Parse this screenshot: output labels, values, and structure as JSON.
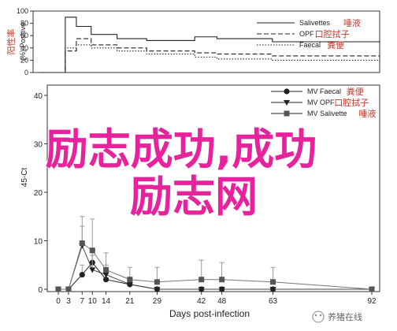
{
  "chart_data": [
    {
      "type": "step",
      "ylabel_cn": "阳性率",
      "ylabel": "(%) Positive",
      "ylim": [
        0,
        100
      ],
      "yticks": [
        0,
        20,
        40,
        60,
        80,
        100
      ],
      "series": [
        {
          "name": "Salivettes",
          "name_cn": "唾液",
          "style": "solid",
          "points": [
            [
              0,
              0
            ],
            [
              3,
              0
            ],
            [
              5,
              0
            ],
            [
              7,
              90
            ],
            [
              10,
              75
            ],
            [
              14,
              62
            ],
            [
              21,
              55
            ],
            [
              29,
              52
            ],
            [
              42,
              58
            ],
            [
              48,
              55
            ],
            [
              63,
              50
            ],
            [
              92,
              48
            ]
          ]
        },
        {
          "name": "OPF",
          "name_cn": "口腔拭子",
          "style": "dashed",
          "points": [
            [
              0,
              0
            ],
            [
              3,
              0
            ],
            [
              5,
              0
            ],
            [
              7,
              35
            ],
            [
              10,
              55
            ],
            [
              14,
              45
            ],
            [
              21,
              40
            ],
            [
              29,
              35
            ],
            [
              42,
              32
            ],
            [
              48,
              30
            ],
            [
              63,
              27
            ],
            [
              92,
              25
            ]
          ]
        },
        {
          "name": "Faecal",
          "name_cn": "粪便",
          "style": "dotted",
          "points": [
            [
              0,
              0
            ],
            [
              3,
              0
            ],
            [
              5,
              0
            ],
            [
              7,
              40
            ],
            [
              10,
              45
            ],
            [
              14,
              40
            ],
            [
              21,
              35
            ],
            [
              29,
              30
            ],
            [
              42,
              25
            ],
            [
              48,
              22
            ],
            [
              63,
              20
            ],
            [
              92,
              18
            ]
          ]
        }
      ]
    },
    {
      "type": "line",
      "ylabel": "45-Ct",
      "xlabel": "Days post-infection",
      "ylim": [
        0,
        40
      ],
      "yticks": [
        0,
        10,
        20,
        30,
        40
      ],
      "xticks": [
        0,
        3,
        7,
        10,
        14,
        21,
        29,
        42,
        48,
        63,
        92
      ],
      "series": [
        {
          "name": "MV Faecal",
          "name_cn": "粪便",
          "marker": "circle",
          "x": [
            0,
            3,
            7,
            10,
            14,
            21,
            29,
            42,
            48,
            63,
            92
          ],
          "y": [
            0,
            0,
            3,
            5.5,
            2,
            1,
            0,
            0,
            0,
            0,
            0
          ],
          "err": [
            0,
            0,
            2,
            3,
            1.5,
            1,
            0,
            0,
            0,
            0,
            0
          ]
        },
        {
          "name": "MV OPF",
          "name_cn": "口腔拭子",
          "marker": "triangle-down",
          "x": [
            0,
            3,
            7,
            10,
            14,
            21,
            29,
            42,
            48,
            63,
            92
          ],
          "y": [
            0,
            0,
            9,
            4,
            3,
            1,
            0,
            0,
            0,
            0,
            0
          ],
          "err": [
            0,
            0,
            4,
            3,
            2,
            1.5,
            0,
            0,
            0,
            0,
            0
          ]
        },
        {
          "name": "MV Salivette",
          "name_cn": "唾液",
          "marker": "square",
          "x": [
            0,
            3,
            7,
            10,
            14,
            21,
            29,
            42,
            48,
            63,
            92
          ],
          "y": [
            0,
            0,
            9.5,
            8,
            4,
            2,
            1.5,
            2,
            2,
            1.5,
            0
          ],
          "err": [
            0,
            0,
            5.5,
            6.5,
            3.5,
            2.5,
            3,
            4,
            3.5,
            3,
            0
          ]
        }
      ]
    }
  ],
  "overlay": {
    "line1": "励志成功,成功",
    "line2": "励志网"
  },
  "watermark": "养猪在线"
}
